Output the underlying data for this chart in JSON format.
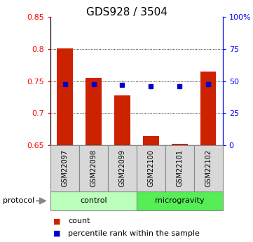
{
  "title": "GDS928 / 3504",
  "samples": [
    "GSM22097",
    "GSM22098",
    "GSM22099",
    "GSM22100",
    "GSM22101",
    "GSM22102"
  ],
  "bar_tops": [
    0.801,
    0.755,
    0.728,
    0.664,
    0.652,
    0.765
  ],
  "bar_bottoms": [
    0.65,
    0.65,
    0.65,
    0.65,
    0.65,
    0.65
  ],
  "blue_squares": [
    0.745,
    0.745,
    0.744,
    0.742,
    0.742,
    0.745
  ],
  "bar_color": "#cc2200",
  "square_color": "#0000cc",
  "ylim_left": [
    0.65,
    0.85
  ],
  "yticks_left": [
    0.65,
    0.7,
    0.75,
    0.8,
    0.85
  ],
  "yticks_right_labels": [
    "0",
    "25",
    "50",
    "75",
    "100%"
  ],
  "yticks_right_vals": [
    0.65,
    0.7,
    0.75,
    0.8,
    0.85
  ],
  "groups": [
    {
      "label": "control",
      "indices": [
        0,
        1,
        2
      ],
      "color": "#bbffbb"
    },
    {
      "label": "microgravity",
      "indices": [
        3,
        4,
        5
      ],
      "color": "#55ee55"
    }
  ],
  "protocol_label": "protocol",
  "legend_items": [
    {
      "label": "count",
      "color": "#cc2200"
    },
    {
      "label": "percentile rank within the sample",
      "color": "#0000cc"
    }
  ],
  "grid_yticks": [
    0.7,
    0.75,
    0.8
  ],
  "bar_width": 0.55,
  "title_fontsize": 11,
  "tick_fontsize": 8,
  "sample_fontsize": 7,
  "group_fontsize": 8,
  "legend_fontsize": 8,
  "protocol_fontsize": 8
}
